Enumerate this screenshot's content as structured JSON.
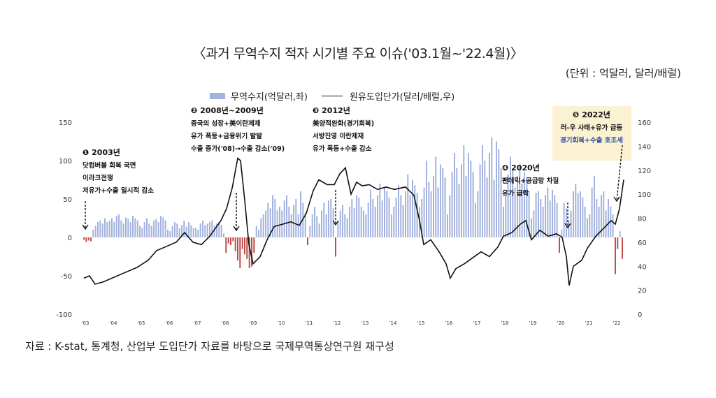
{
  "title": "〈과거 무역수지 적자 시기별 주요 이슈('03.1월~'22.4월)〉",
  "unit": "(단위 : 억달러, 달러/배럴)",
  "legend": {
    "bar": "무역수지(억달러,좌)",
    "line": "원유도입단가(달러/배럴,우)"
  },
  "footer": "자료 : K-stat, 통계청, 산업부 도입단가 자료를 바탕으로 국제무역통상연구원 재구성",
  "colors": {
    "bar_positive": "#a3b2de",
    "bar_negative": "#c24a4a",
    "line": "#111111",
    "highlight_bg": "#fbf1d3",
    "highlight_text": "#2f4e9e"
  },
  "annotations": [
    {
      "num": "❶",
      "title": "2003년",
      "lines": [
        "닷컴버블 회복 국면",
        "이라크전쟁",
        "저유가+수출 일시적 감소"
      ],
      "arrow_date": 2003.05
    },
    {
      "num": "❷",
      "title": "2008년~2009년",
      "lines": [
        "중국의 성장+美이란제재",
        "유가 폭등+금융위기 발발",
        "수출 증가('08)→수출 감소('09)"
      ],
      "arrow_date": 2008.45
    },
    {
      "num": "❸",
      "title": "2012년",
      "lines": [
        "美양적완화(경기회복)",
        "서방진영 이란제재",
        "유가 폭등+수출 감소"
      ],
      "arrow_date": 2012.0
    },
    {
      "num": "❹",
      "title": "2020년",
      "lines": [
        "팬데믹+공급망 차질",
        "유가 급락"
      ],
      "arrow_date": 2020.3
    },
    {
      "num": "❺",
      "title": "2022년",
      "lines": [
        "러-우 사태+유가 급등",
        "경기회복+수출 호조세"
      ],
      "arrow_date": 2022.0
    }
  ],
  "chart_data": {
    "type": "bar+line",
    "x_tick_labels": [
      "'03",
      "'04",
      "'05",
      "'06",
      "'07",
      "'08",
      "'09",
      "'10",
      "'11",
      "'12",
      "'13",
      "'14",
      "'15",
      "'16",
      "'17",
      "'18",
      "'19",
      "'20",
      "'21",
      "'22"
    ],
    "y_left": {
      "label": "무역수지(억달러,좌)",
      "lim": [
        -100,
        150
      ],
      "ticks": [
        -100,
        -50,
        0,
        50,
        100,
        150
      ]
    },
    "y_right": {
      "label": "원유도입단가(달러/배럴,우)",
      "lim": [
        0,
        160
      ],
      "ticks": [
        0,
        20,
        40,
        60,
        80,
        100,
        120,
        140,
        160
      ]
    },
    "series": [
      {
        "name": "무역수지(억달러,좌)",
        "type": "bar",
        "axis": "left",
        "x_start": 2003.0,
        "x_step": 0.08333,
        "values": [
          -3,
          -6,
          -4,
          -5,
          10,
          15,
          20,
          22,
          18,
          25,
          20,
          22,
          25,
          20,
          28,
          30,
          22,
          18,
          26,
          24,
          20,
          28,
          25,
          22,
          15,
          12,
          20,
          25,
          18,
          15,
          22,
          24,
          20,
          28,
          26,
          22,
          10,
          8,
          15,
          20,
          18,
          12,
          16,
          22,
          14,
          20,
          16,
          12,
          12,
          10,
          18,
          22,
          16,
          18,
          20,
          22,
          15,
          18,
          20,
          16,
          5,
          -20,
          -8,
          -10,
          -5,
          -18,
          -30,
          -40,
          -15,
          -22,
          -28,
          -40,
          -38,
          -20,
          15,
          10,
          25,
          30,
          35,
          45,
          38,
          55,
          50,
          35,
          40,
          35,
          48,
          55,
          40,
          30,
          42,
          50,
          30,
          60,
          45,
          32,
          -10,
          15,
          30,
          40,
          28,
          18,
          35,
          45,
          30,
          48,
          50,
          38,
          -25,
          20,
          35,
          42,
          30,
          25,
          40,
          50,
          38,
          55,
          52,
          40,
          35,
          30,
          45,
          62,
          50,
          40,
          55,
          70,
          48,
          65,
          60,
          52,
          30,
          40,
          52,
          68,
          55,
          42,
          60,
          82,
          55,
          75,
          68,
          58,
          40,
          50,
          65,
          100,
          72,
          60,
          80,
          105,
          65,
          95,
          90,
          78,
          30,
          55,
          85,
          110,
          90,
          70,
          95,
          120,
          80,
          110,
          100,
          85,
          45,
          60,
          95,
          120,
          100,
          78,
          110,
          130,
          75,
          125,
          115,
          90,
          40,
          55,
          82,
          105,
          90,
          65,
          80,
          95,
          70,
          85,
          78,
          60,
          25,
          35,
          58,
          60,
          50,
          40,
          55,
          65,
          48,
          62,
          55,
          45,
          -20,
          10,
          45,
          38,
          22,
          35,
          60,
          70,
          58,
          60,
          52,
          40,
          25,
          30,
          65,
          80,
          50,
          40,
          55,
          60,
          35,
          50,
          40,
          30,
          -48,
          -15,
          8,
          -28
        ]
      },
      {
        "name": "원유도입단가(달러/배럴,우)",
        "type": "line",
        "axis": "right",
        "points": [
          [
            2003.0,
            30
          ],
          [
            2003.2,
            32
          ],
          [
            2003.4,
            25
          ],
          [
            2003.7,
            27
          ],
          [
            2004.0,
            30
          ],
          [
            2004.5,
            35
          ],
          [
            2004.9,
            39
          ],
          [
            2005.3,
            45
          ],
          [
            2005.6,
            53
          ],
          [
            2005.9,
            56
          ],
          [
            2006.3,
            60
          ],
          [
            2006.6,
            68
          ],
          [
            2006.9,
            60
          ],
          [
            2007.2,
            58
          ],
          [
            2007.5,
            65
          ],
          [
            2007.9,
            78
          ],
          [
            2008.1,
            88
          ],
          [
            2008.3,
            105
          ],
          [
            2008.5,
            130
          ],
          [
            2008.6,
            128
          ],
          [
            2008.75,
            95
          ],
          [
            2008.9,
            58
          ],
          [
            2009.05,
            42
          ],
          [
            2009.3,
            48
          ],
          [
            2009.55,
            62
          ],
          [
            2009.8,
            73
          ],
          [
            2010.1,
            75
          ],
          [
            2010.4,
            77
          ],
          [
            2010.7,
            74
          ],
          [
            2010.95,
            84
          ],
          [
            2011.2,
            103
          ],
          [
            2011.4,
            112
          ],
          [
            2011.7,
            108
          ],
          [
            2011.95,
            108
          ],
          [
            2012.15,
            117
          ],
          [
            2012.35,
            122
          ],
          [
            2012.55,
            100
          ],
          [
            2012.75,
            110
          ],
          [
            2012.95,
            107
          ],
          [
            2013.2,
            108
          ],
          [
            2013.5,
            104
          ],
          [
            2013.8,
            106
          ],
          [
            2014.1,
            104
          ],
          [
            2014.5,
            106
          ],
          [
            2014.8,
            99
          ],
          [
            2015.0,
            78
          ],
          [
            2015.15,
            58
          ],
          [
            2015.4,
            62
          ],
          [
            2015.7,
            52
          ],
          [
            2015.95,
            42
          ],
          [
            2016.1,
            30
          ],
          [
            2016.3,
            38
          ],
          [
            2016.6,
            42
          ],
          [
            2016.9,
            47
          ],
          [
            2017.2,
            52
          ],
          [
            2017.5,
            48
          ],
          [
            2017.8,
            56
          ],
          [
            2018.0,
            65
          ],
          [
            2018.3,
            68
          ],
          [
            2018.6,
            75
          ],
          [
            2018.8,
            78
          ],
          [
            2019.0,
            62
          ],
          [
            2019.3,
            70
          ],
          [
            2019.6,
            65
          ],
          [
            2019.9,
            67
          ],
          [
            2020.1,
            64
          ],
          [
            2020.25,
            48
          ],
          [
            2020.35,
            24
          ],
          [
            2020.5,
            40
          ],
          [
            2020.8,
            45
          ],
          [
            2021.0,
            55
          ],
          [
            2021.3,
            65
          ],
          [
            2021.6,
            72
          ],
          [
            2021.85,
            78
          ],
          [
            2022.0,
            75
          ],
          [
            2022.15,
            88
          ],
          [
            2022.3,
            112
          ]
        ]
      }
    ],
    "grid": false
  }
}
